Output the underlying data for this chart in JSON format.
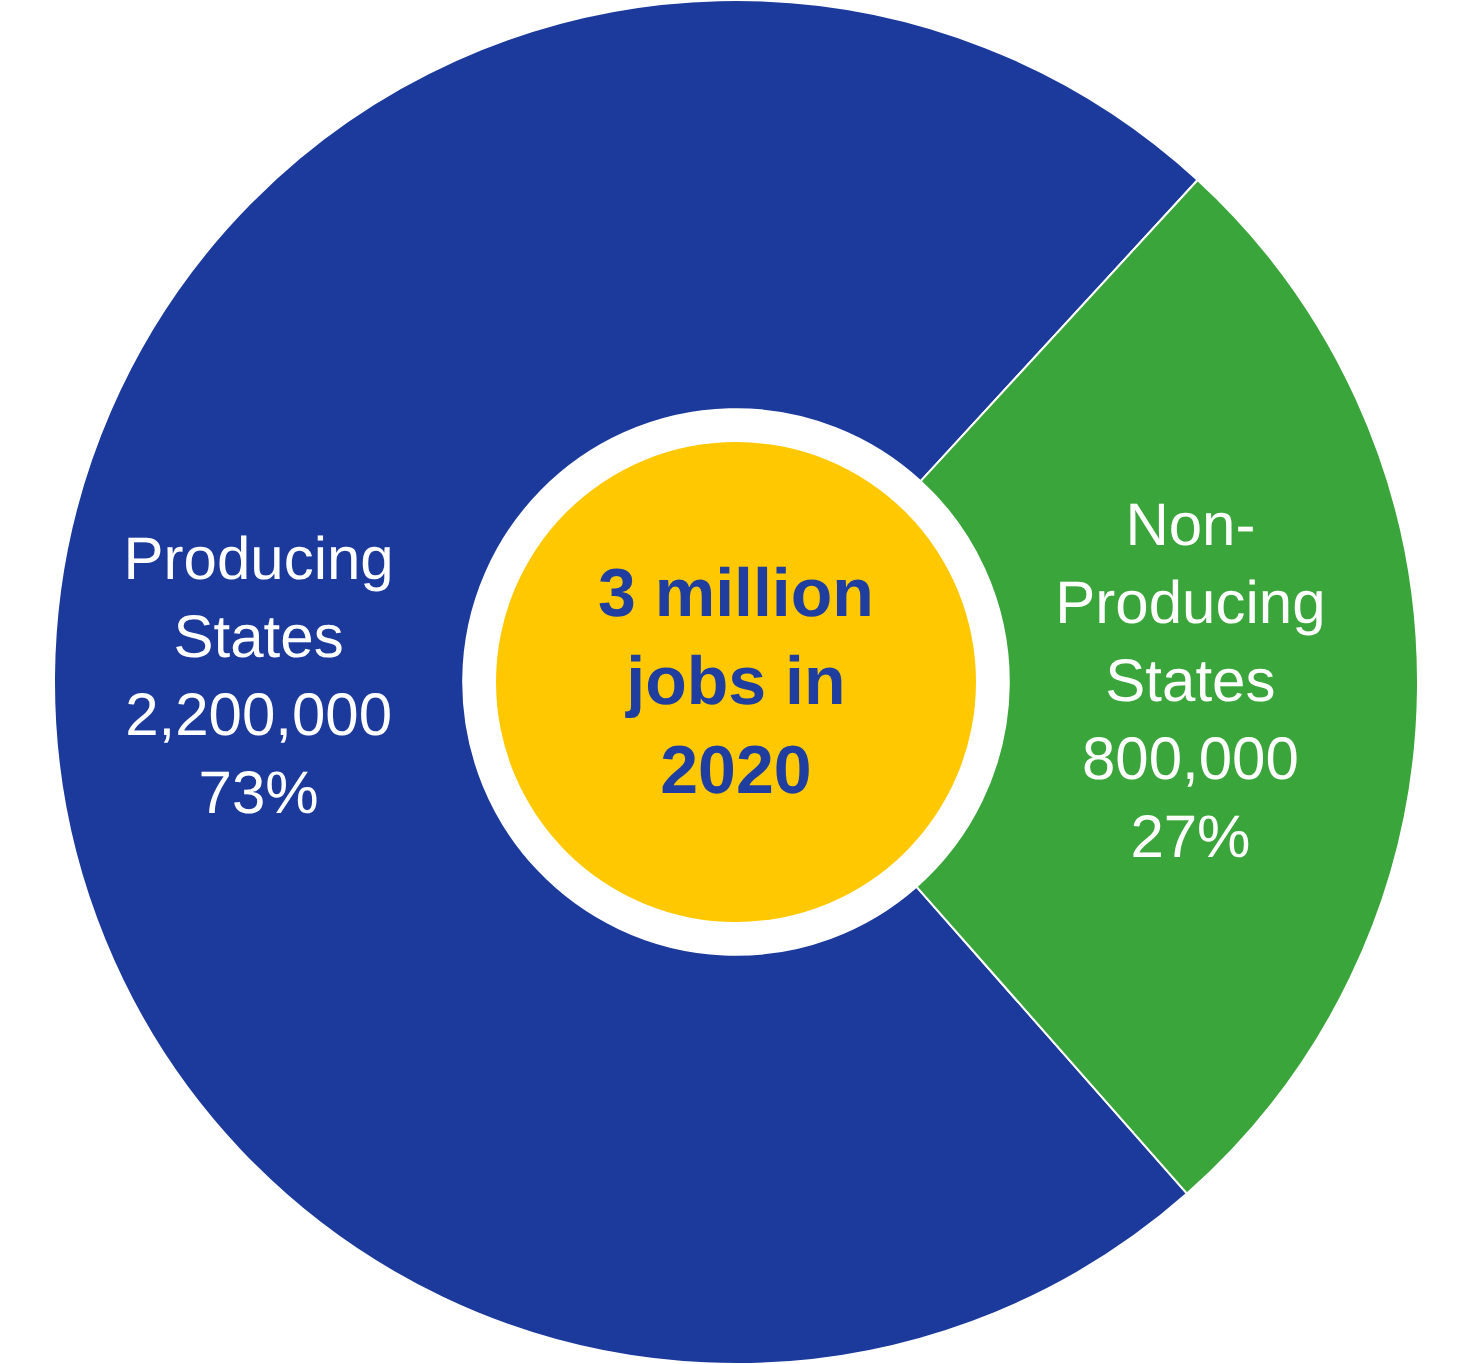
{
  "chart_data": {
    "type": "donut",
    "categories": [
      "Producing States",
      "Non-Producing States"
    ],
    "values": [
      2200000,
      800000
    ],
    "value_labels": [
      "2,200,000\n73%",
      "800,000\n27%"
    ],
    "colors": [
      "#1b3a9c",
      "#3aa53a"
    ],
    "annotations": [
      "3 million\njobs in\n2020"
    ],
    "legend": false
  }
}
